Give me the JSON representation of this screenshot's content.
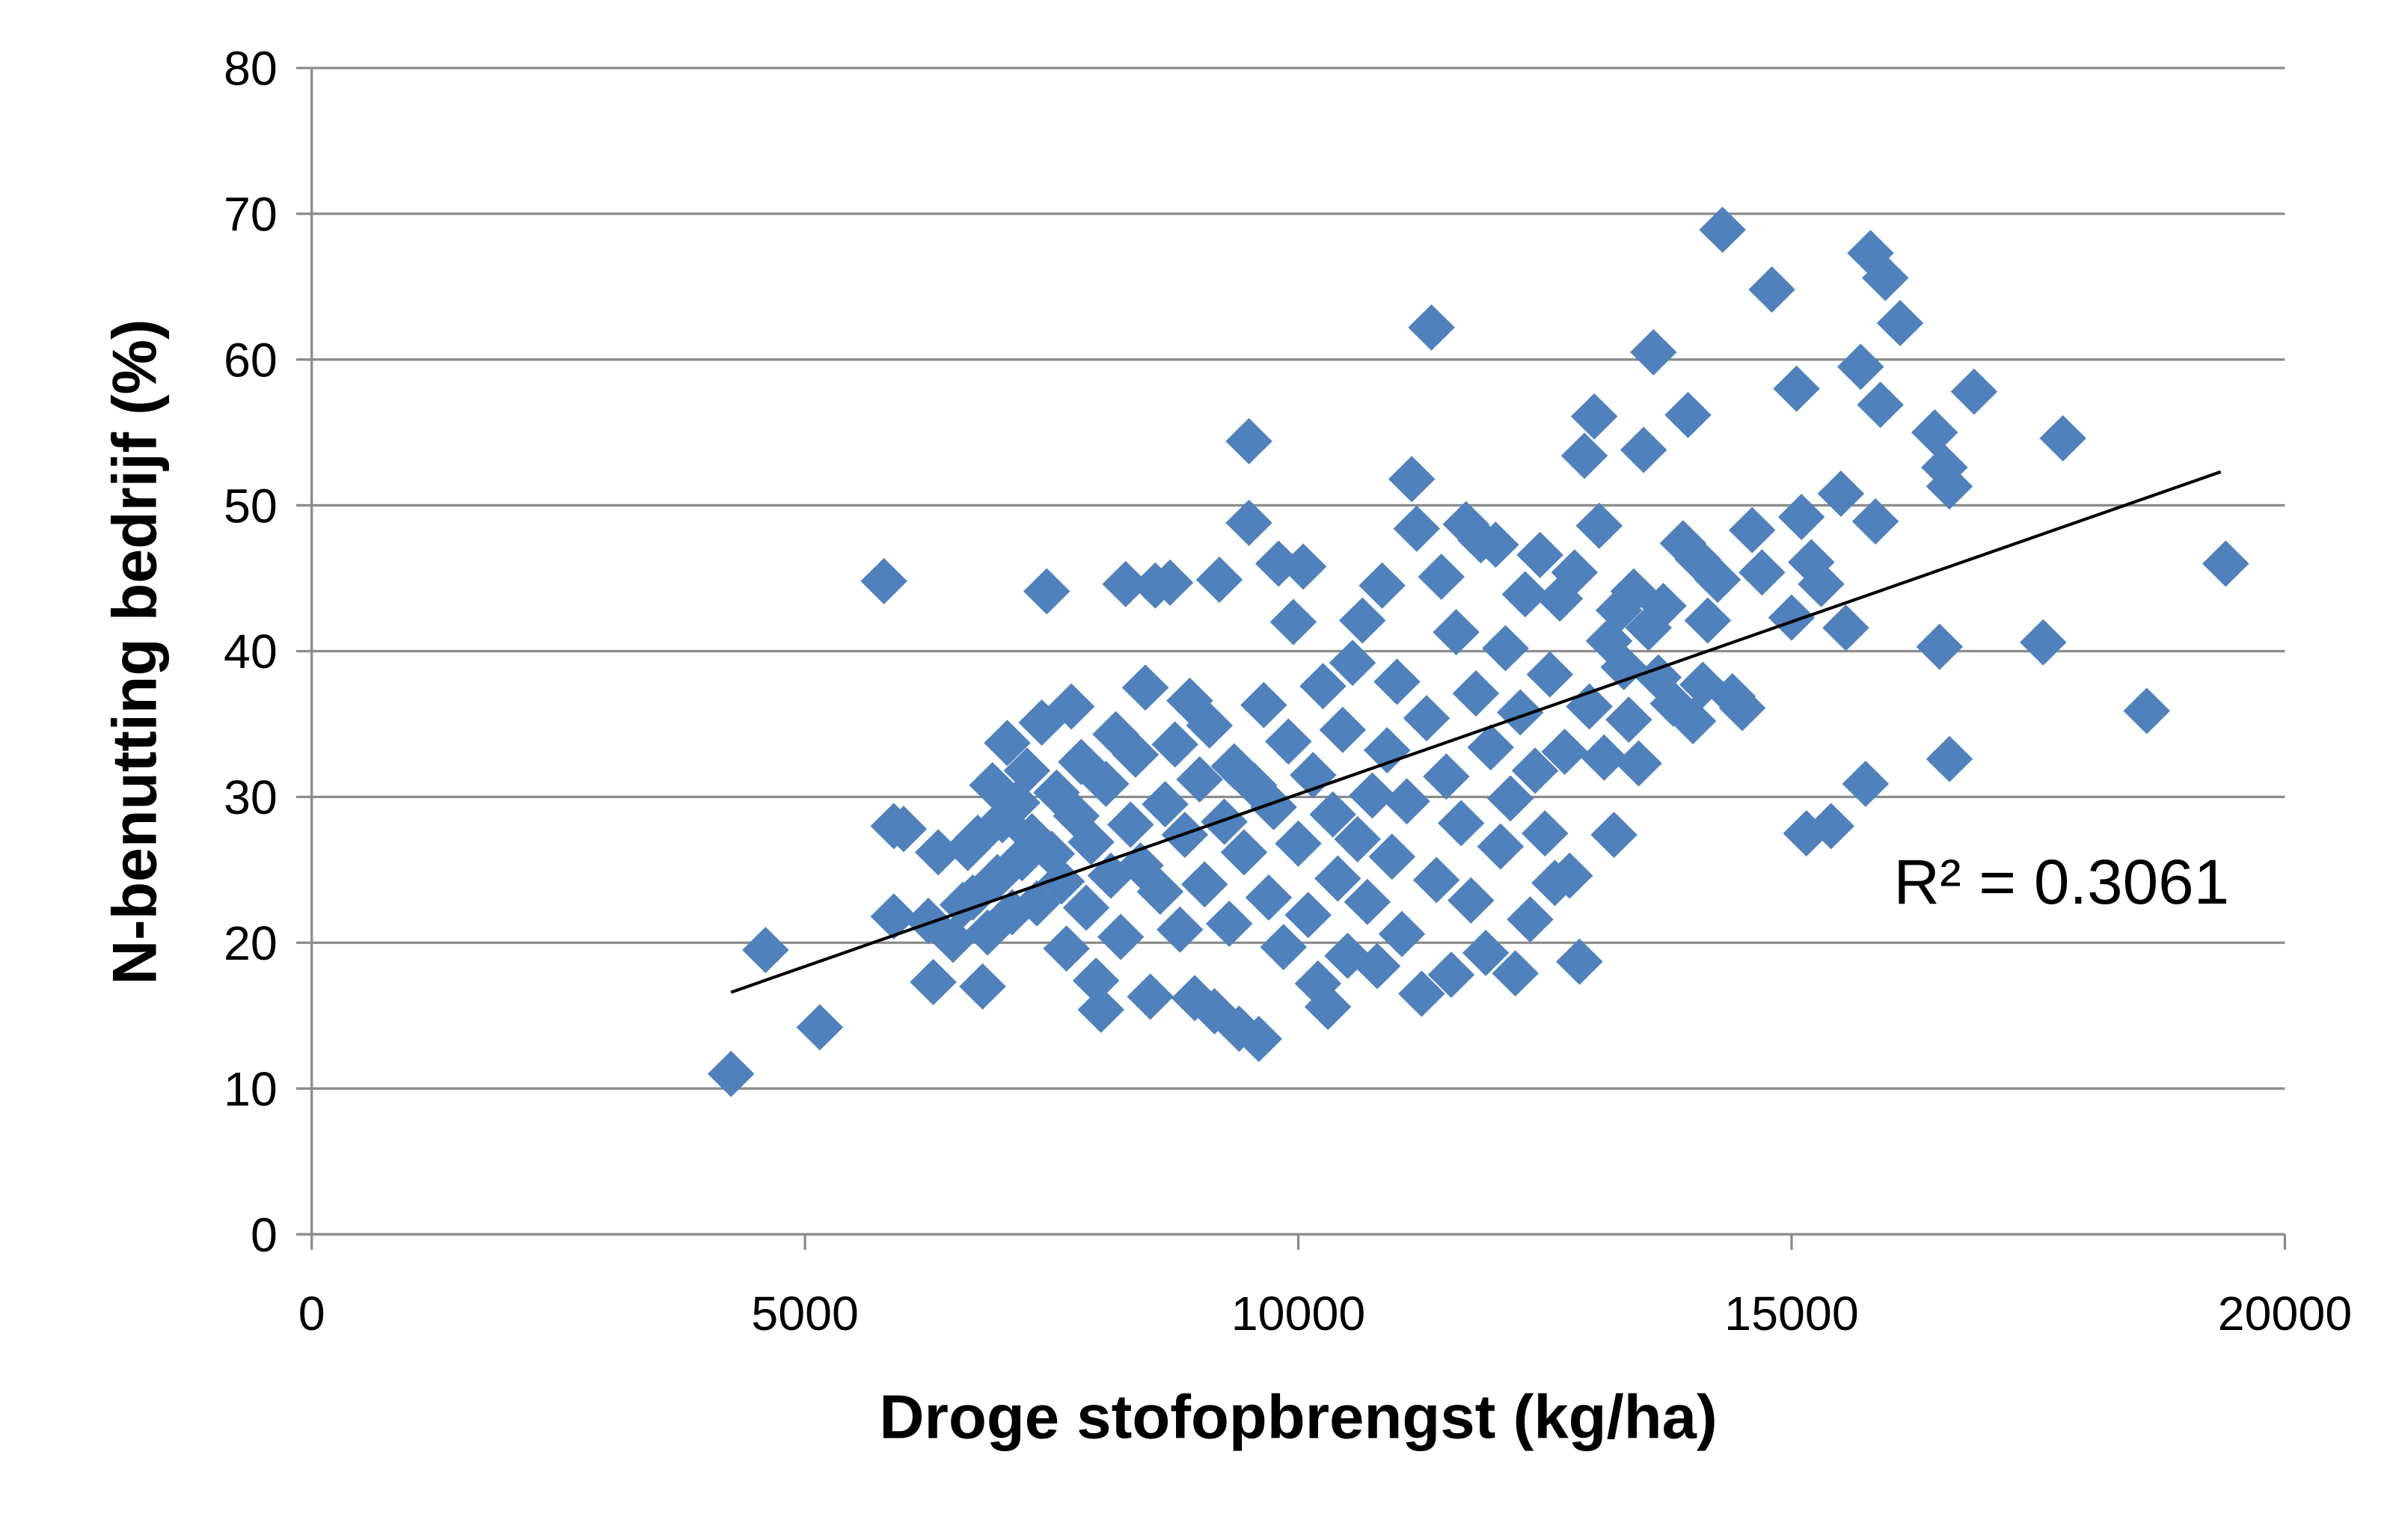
{
  "chart_data": {
    "type": "scatter",
    "xlabel": "Droge stofopbrengst (kg/ha)",
    "ylabel": "N-benutting bedrijf (%)",
    "xlim": [
      0,
      20000
    ],
    "ylim": [
      0,
      80
    ],
    "xticks": [
      0,
      5000,
      10000,
      15000,
      20000
    ],
    "yticks": [
      0,
      10,
      20,
      30,
      40,
      50,
      60,
      70,
      80
    ],
    "x_tick_labels": [
      "0",
      "5000",
      "10000",
      "15000",
      "20000"
    ],
    "y_tick_labels": [
      "0",
      "10",
      "20",
      "30",
      "40",
      "50",
      "60",
      "70",
      "80"
    ],
    "grid": "horizontal",
    "legend": "none",
    "marker": "diamond",
    "series_color": "#4F81BD",
    "trendline": {
      "type": "linear",
      "color": "#000000",
      "points": [
        [
          4250,
          16.6
        ],
        [
          19350,
          52.3
        ]
      ],
      "label": "R² = 0.3061"
    },
    "series": [
      {
        "points": [
          [
            4250,
            11
          ],
          [
            4600,
            19.5
          ],
          [
            5150,
            14.2
          ],
          [
            5800,
            44.8
          ],
          [
            5900,
            28
          ],
          [
            5900,
            21.8
          ],
          [
            6000,
            27.8
          ],
          [
            6250,
            21.5
          ],
          [
            6300,
            17.3
          ],
          [
            6350,
            26.2
          ],
          [
            6500,
            20.2
          ],
          [
            6600,
            22.6
          ],
          [
            6650,
            26.5
          ],
          [
            6700,
            23.1
          ],
          [
            6750,
            27.2
          ],
          [
            6800,
            17
          ],
          [
            6850,
            20.7
          ],
          [
            6900,
            30.8
          ],
          [
            6950,
            24.5
          ],
          [
            7000,
            28.4
          ],
          [
            7050,
            33.7
          ],
          [
            7100,
            22.1
          ],
          [
            7150,
            29.6
          ],
          [
            7200,
            25.8
          ],
          [
            7250,
            31.8
          ],
          [
            7300,
            27.3
          ],
          [
            7350,
            22.7
          ],
          [
            7400,
            35.1
          ],
          [
            7450,
            44.1
          ],
          [
            7500,
            26.1
          ],
          [
            7550,
            30.3
          ],
          [
            7600,
            24.2
          ],
          [
            7650,
            19.6
          ],
          [
            7700,
            36.2
          ],
          [
            7750,
            28.7
          ],
          [
            7800,
            32.4
          ],
          [
            7850,
            22.4
          ],
          [
            7900,
            26.9
          ],
          [
            7950,
            17.4
          ],
          [
            8000,
            15.4
          ],
          [
            8050,
            30.9
          ],
          [
            8100,
            24.6
          ],
          [
            8150,
            34.3
          ],
          [
            8200,
            20.4
          ],
          [
            8250,
            44.6
          ],
          [
            8300,
            28.1
          ],
          [
            8350,
            32.9
          ],
          [
            8400,
            25.3
          ],
          [
            8450,
            37.5
          ],
          [
            8500,
            16.3
          ],
          [
            8550,
            44.5
          ],
          [
            8600,
            23.5
          ],
          [
            8650,
            29.5
          ],
          [
            8700,
            44.7
          ],
          [
            8750,
            33.6
          ],
          [
            8800,
            20.9
          ],
          [
            8850,
            27.4
          ],
          [
            8900,
            36.6
          ],
          [
            8950,
            16.2
          ],
          [
            9000,
            31.2
          ],
          [
            9050,
            24
          ],
          [
            9100,
            34.9
          ],
          [
            9150,
            15.3
          ],
          [
            9200,
            44.9
          ],
          [
            9250,
            28.3
          ],
          [
            9300,
            21.3
          ],
          [
            9350,
            32.1
          ],
          [
            9400,
            14.1
          ],
          [
            9450,
            26.2
          ],
          [
            9500,
            54.4
          ],
          [
            9500,
            48.8
          ],
          [
            9550,
            30.8
          ],
          [
            9600,
            13.4
          ],
          [
            9650,
            36.3
          ],
          [
            9700,
            23.1
          ],
          [
            9750,
            29.3
          ],
          [
            9800,
            46
          ],
          [
            9850,
            19.7
          ],
          [
            9900,
            33.8
          ],
          [
            9950,
            42
          ],
          [
            10000,
            26.8
          ],
          [
            10050,
            45.8
          ],
          [
            10100,
            21.9
          ],
          [
            10150,
            31.5
          ],
          [
            10200,
            17.2
          ],
          [
            10250,
            37.6
          ],
          [
            10300,
            15.6
          ],
          [
            10350,
            28.8
          ],
          [
            10400,
            24.4
          ],
          [
            10450,
            34.6
          ],
          [
            10500,
            19.1
          ],
          [
            10550,
            39.2
          ],
          [
            10600,
            27.1
          ],
          [
            10650,
            42.1
          ],
          [
            10700,
            22.8
          ],
          [
            10750,
            30.1
          ],
          [
            10800,
            18.4
          ],
          [
            10850,
            44.5
          ],
          [
            10900,
            33.2
          ],
          [
            10950,
            25.9
          ],
          [
            11000,
            37.9
          ],
          [
            11050,
            20.6
          ],
          [
            11100,
            29.7
          ],
          [
            11150,
            51.8
          ],
          [
            11200,
            48.4
          ],
          [
            11250,
            16.5
          ],
          [
            11300,
            35.4
          ],
          [
            11350,
            62.2
          ],
          [
            11400,
            24.3
          ],
          [
            11450,
            45.1
          ],
          [
            11500,
            31.4
          ],
          [
            11550,
            17.8
          ],
          [
            11600,
            41.3
          ],
          [
            11650,
            28.2
          ],
          [
            11700,
            48.7
          ],
          [
            11750,
            22.9
          ],
          [
            11800,
            37.1
          ],
          [
            11850,
            47.6
          ],
          [
            11900,
            19.3
          ],
          [
            11950,
            33.4
          ],
          [
            12000,
            47.3
          ],
          [
            12050,
            26.6
          ],
          [
            12100,
            40.2
          ],
          [
            12150,
            29.9
          ],
          [
            12200,
            17.9
          ],
          [
            12250,
            35.8
          ],
          [
            12300,
            43.9
          ],
          [
            12350,
            21.6
          ],
          [
            12400,
            31.8
          ],
          [
            12450,
            46.6
          ],
          [
            12500,
            27.5
          ],
          [
            12550,
            38.4
          ],
          [
            12600,
            24.1
          ],
          [
            12650,
            43.6
          ],
          [
            12700,
            33.1
          ],
          [
            12750,
            24.6
          ],
          [
            12800,
            45.4
          ],
          [
            12850,
            18.7
          ],
          [
            12900,
            53.4
          ],
          [
            12950,
            36.2
          ],
          [
            13000,
            56.1
          ],
          [
            13050,
            48.6
          ],
          [
            13100,
            32.7
          ],
          [
            13150,
            40.7
          ],
          [
            13200,
            27.4
          ],
          [
            13250,
            42.8
          ],
          [
            13300,
            38.9
          ],
          [
            13350,
            35.3
          ],
          [
            13400,
            44.1
          ],
          [
            13450,
            32.3
          ],
          [
            13500,
            53.8
          ],
          [
            13550,
            41.6
          ],
          [
            13600,
            60.5
          ],
          [
            13650,
            38.2
          ],
          [
            13700,
            43.1
          ],
          [
            13800,
            36.4
          ],
          [
            13900,
            47.4
          ],
          [
            13950,
            56.2
          ],
          [
            14000,
            35.2
          ],
          [
            14050,
            46.3
          ],
          [
            14100,
            37.7
          ],
          [
            14150,
            42.1
          ],
          [
            14250,
            44.9
          ],
          [
            14300,
            68.9
          ],
          [
            14400,
            36.9
          ],
          [
            14500,
            36.1
          ],
          [
            14600,
            48.3
          ],
          [
            14700,
            45.4
          ],
          [
            14800,
            64.8
          ],
          [
            15000,
            42.3
          ],
          [
            15050,
            58
          ],
          [
            15100,
            49.2
          ],
          [
            15150,
            27.5
          ],
          [
            15200,
            46.1
          ],
          [
            15300,
            44.6
          ],
          [
            15400,
            28
          ],
          [
            15500,
            50.8
          ],
          [
            15550,
            41.6
          ],
          [
            15700,
            59.5
          ],
          [
            15750,
            30.9
          ],
          [
            15800,
            67.3
          ],
          [
            15850,
            48.9
          ],
          [
            15900,
            56.9
          ],
          [
            15950,
            65.6
          ],
          [
            16100,
            62.5
          ],
          [
            16450,
            55
          ],
          [
            16500,
            40.3
          ],
          [
            16550,
            52.6
          ],
          [
            16600,
            51.3
          ],
          [
            16600,
            32.6
          ],
          [
            16850,
            57.8
          ],
          [
            17550,
            40.6
          ],
          [
            17750,
            54.6
          ],
          [
            18600,
            35.9
          ],
          [
            19400,
            46
          ]
        ]
      }
    ]
  }
}
